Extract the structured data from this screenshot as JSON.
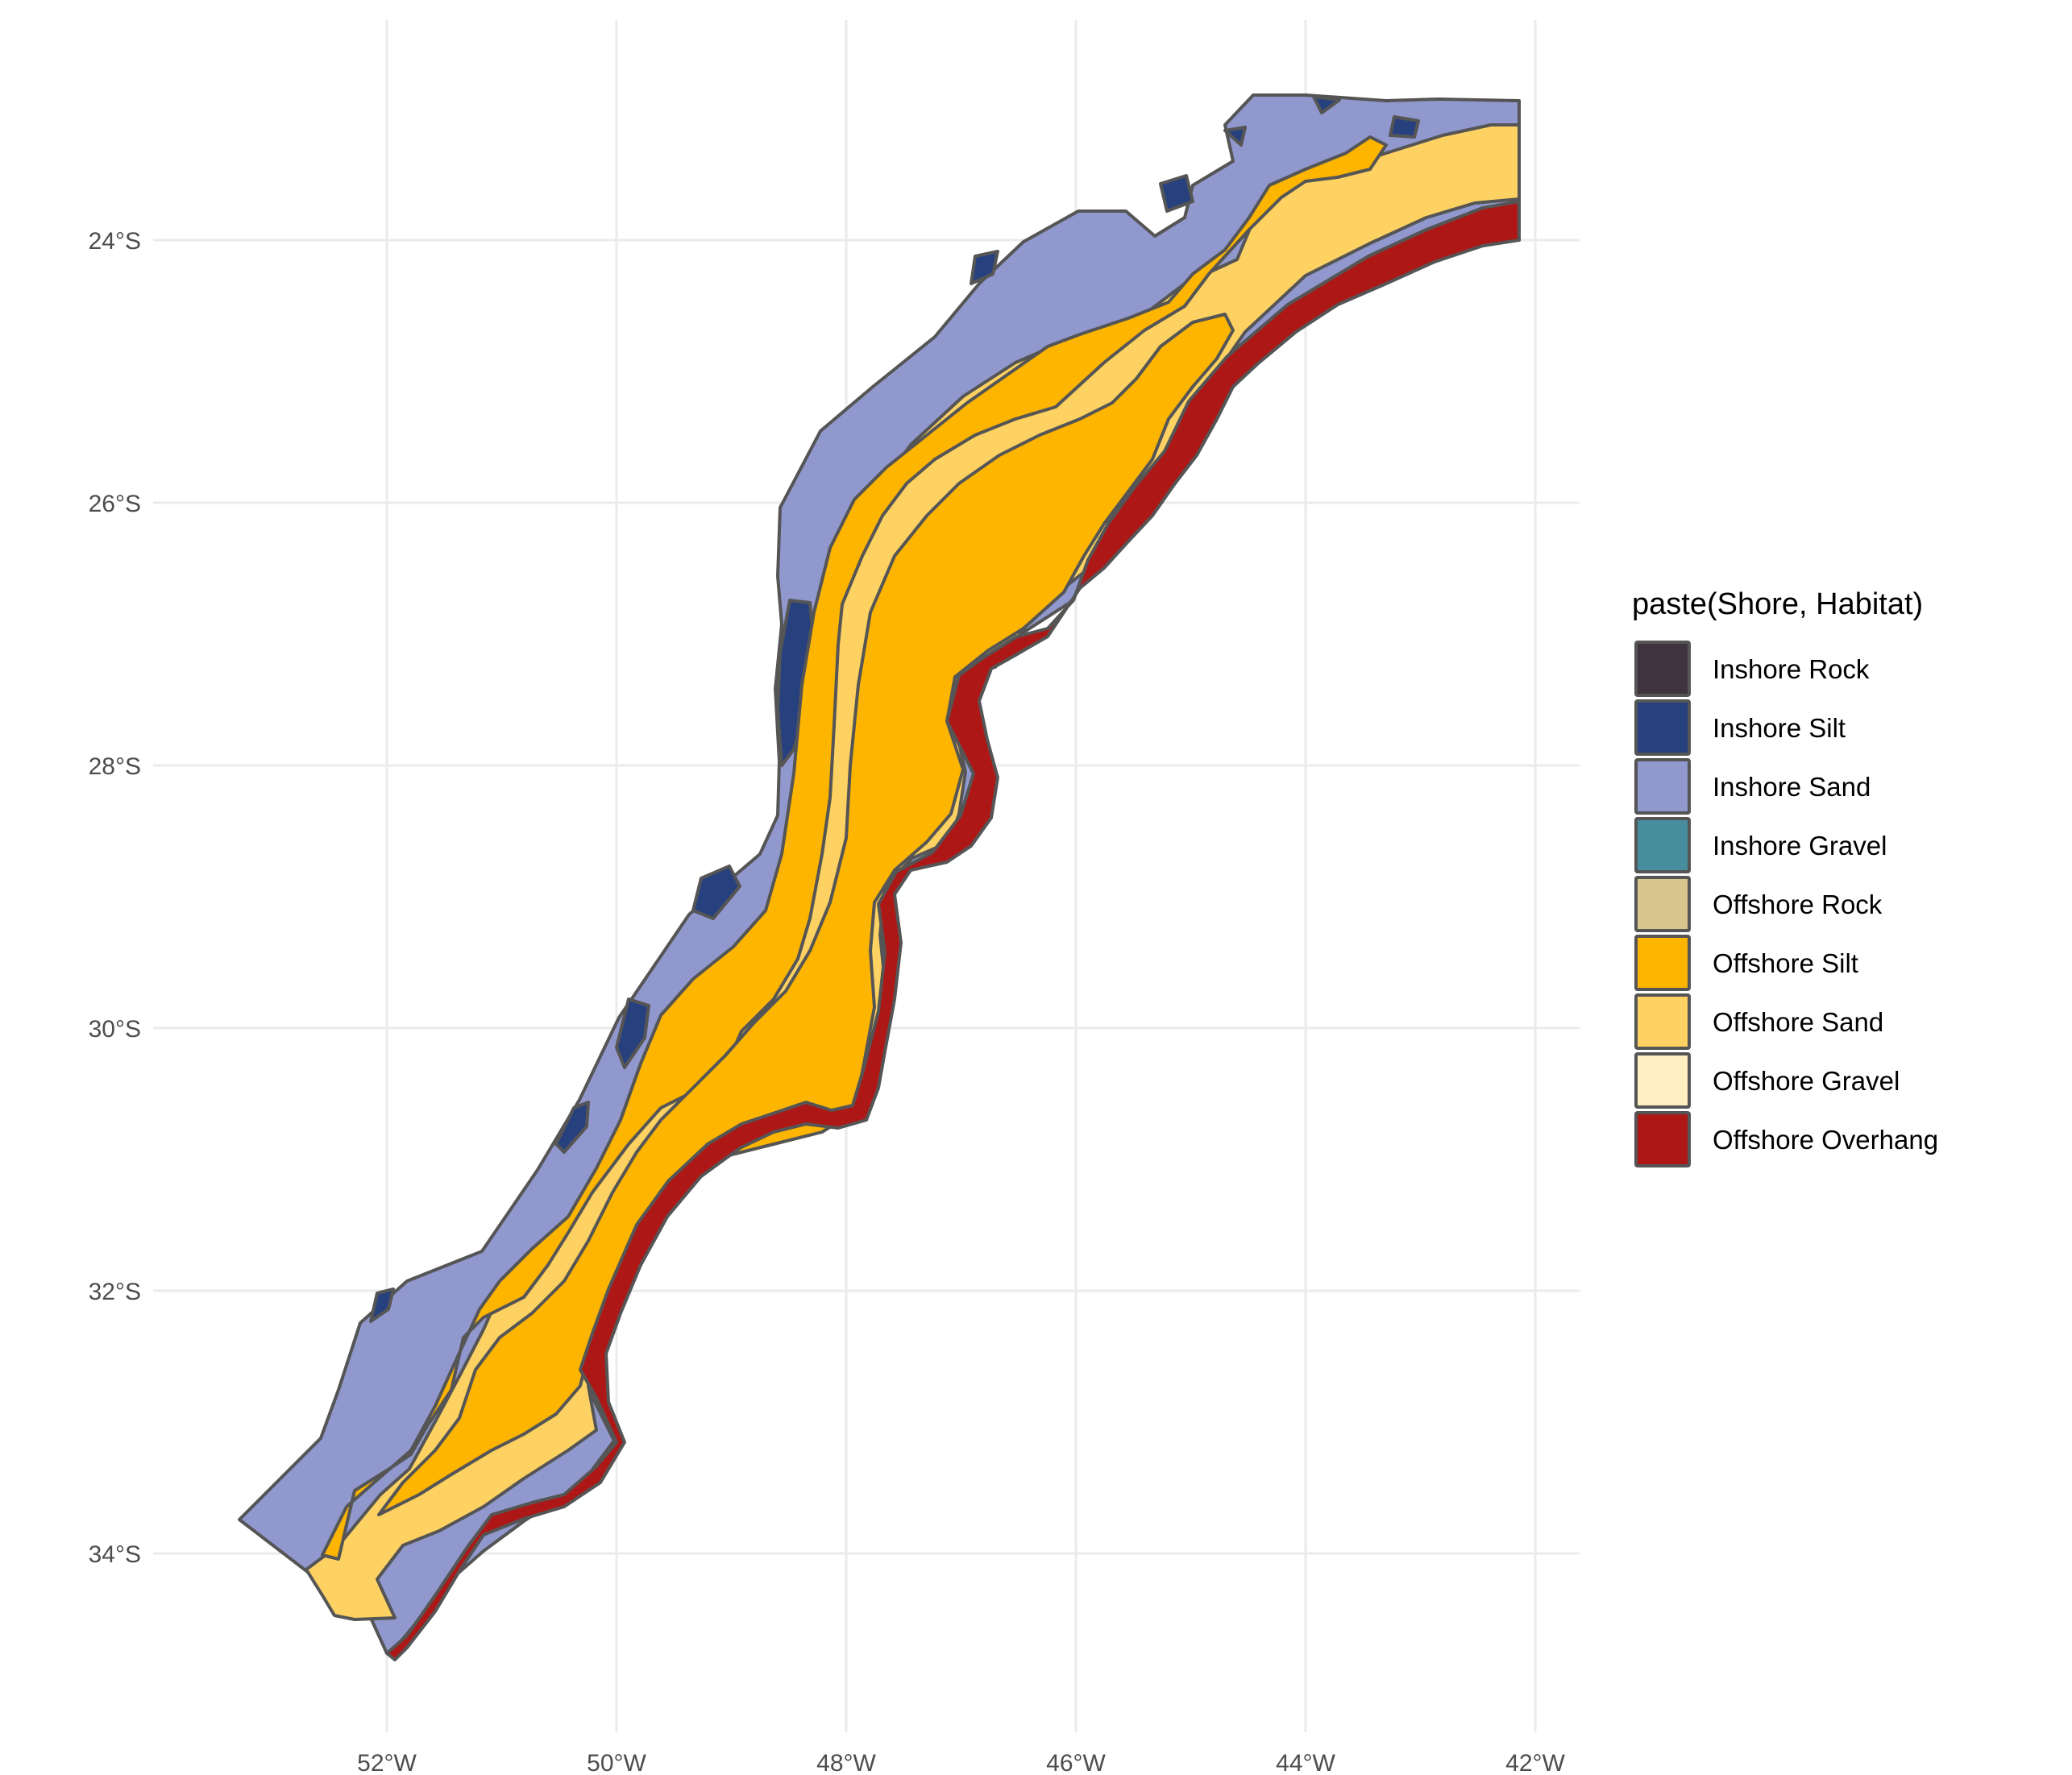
{
  "map": {
    "x_ticks": [
      "52°W",
      "50°W",
      "48°W",
      "46°W",
      "44°W",
      "42°W"
    ],
    "y_ticks": [
      "24°S",
      "26°S",
      "28°S",
      "30°S",
      "32°S",
      "34°S"
    ],
    "outline_color": "#555555",
    "grid_color": "#ebebeb",
    "layers": [
      {
        "label": "Inshore Sand",
        "color": "#9098cd"
      },
      {
        "label": "Inshore Silt",
        "color": "#27417f"
      },
      {
        "label": "Offshore Sand",
        "color": "#fed262"
      },
      {
        "label": "Offshore Silt",
        "color": "#fdb500"
      },
      {
        "label": "Offshore Overhang",
        "color": "#ad1817"
      }
    ]
  },
  "legend": {
    "title": "paste(Shore, Habitat)",
    "items": [
      {
        "label": "Inshore Rock",
        "color": "#3f333d"
      },
      {
        "label": "Inshore Silt",
        "color": "#27417f"
      },
      {
        "label": "Inshore Sand",
        "color": "#9098cd"
      },
      {
        "label": "Inshore Gravel",
        "color": "#478d9d"
      },
      {
        "label": "Offshore Rock",
        "color": "#d9c58e"
      },
      {
        "label": "Offshore Silt",
        "color": "#fdb500"
      },
      {
        "label": "Offshore Sand",
        "color": "#fed262"
      },
      {
        "label": "Offshore Gravel",
        "color": "#feeec1"
      },
      {
        "label": "Offshore Overhang",
        "color": "#ad1817"
      }
    ]
  }
}
